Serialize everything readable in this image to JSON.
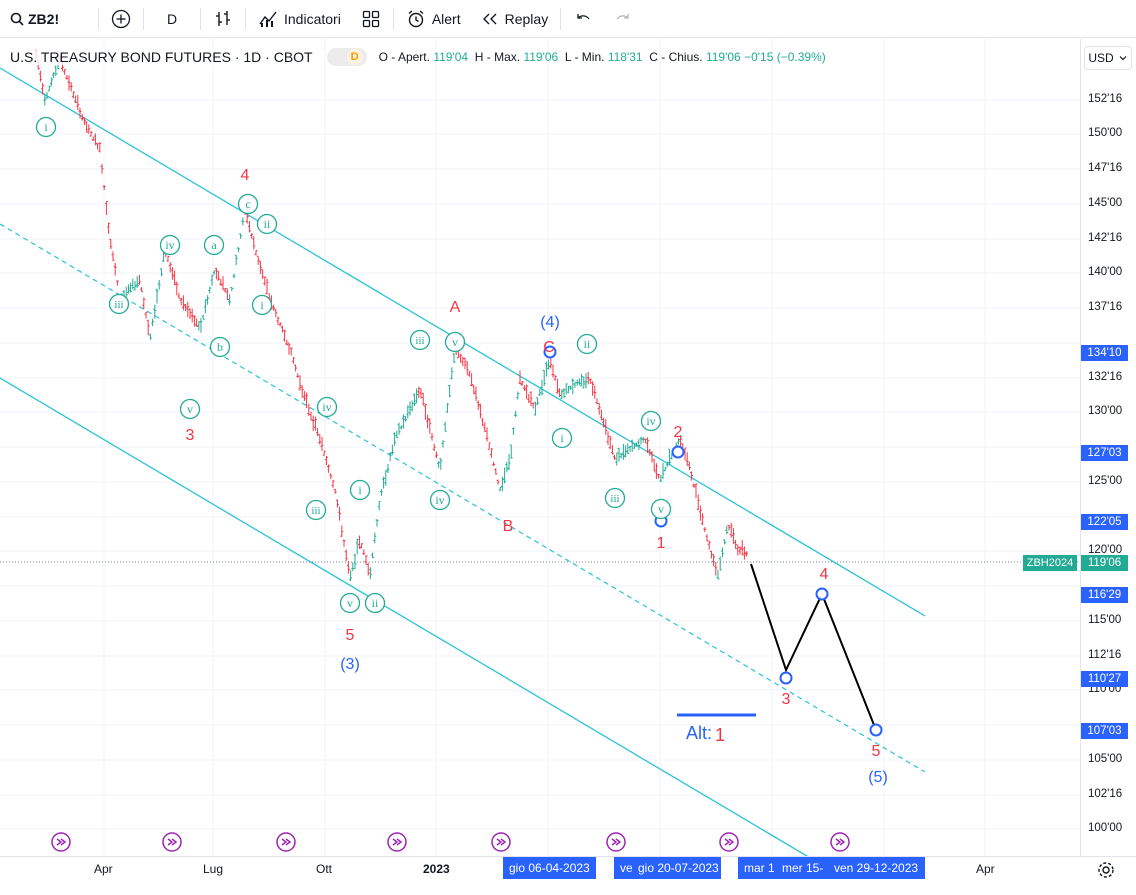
{
  "toolbar": {
    "symbol": "ZB2!",
    "interval": "D",
    "indicators_label": "Indicatori",
    "alert_label": "Alert",
    "replay_label": "Replay"
  },
  "legend": {
    "title": "U.S. TREASURY BOND FUTURES · 1D · CBOT",
    "badge": "D",
    "o_label": "O - Apert.",
    "o_value": "119'04",
    "h_label": "H - Max.",
    "h_value": "119'06",
    "l_label": "L - Min.",
    "l_value": "118'31",
    "c_label": "C - Chius.",
    "c_value": "119'06",
    "change": "−0'15 (−0.39%)"
  },
  "currency": "USD",
  "price_axis": {
    "ticks": [
      "152'16",
      "150'00",
      "147'16",
      "145'00",
      "142'16",
      "140'00",
      "137'16",
      "132'16",
      "130'00",
      "125'00",
      "120'00",
      "115'00",
      "112'16",
      "110'00",
      "105'00",
      "102'16",
      "100'00"
    ],
    "tags": [
      {
        "text": "134'10",
        "color": "#2962ff"
      },
      {
        "text": "127'03",
        "color": "#2962ff"
      },
      {
        "text": "122'05",
        "color": "#2962ff"
      },
      {
        "text": "119'06",
        "color": "#22ab94"
      },
      {
        "text": "116'29",
        "color": "#2962ff"
      },
      {
        "text": "110'27",
        "color": "#2962ff"
      },
      {
        "text": "107'03",
        "color": "#2962ff"
      }
    ],
    "symbol_tag": "ZBH2024"
  },
  "time_axis": {
    "labels": [
      "Apr",
      "Lug",
      "Ott",
      "2023",
      "Apr"
    ],
    "highlighted": [
      "gio 06-04-2023",
      "ve",
      "gio 20-07-2023",
      "mar 1",
      "mer 15-",
      "ven 29-12-2023"
    ]
  },
  "annotations": {
    "wave_labels_red": [
      "4",
      "3",
      "5",
      "A",
      "B",
      "C",
      "2",
      "1",
      "4",
      "3",
      "5"
    ],
    "wave_labels_blue": [
      "(4)",
      "(3)",
      "(5)"
    ],
    "alt_label": "Alt:",
    "alt_value": "1"
  },
  "chart_data": {
    "type": "candlestick",
    "title": "U.S. TREASURY BOND FUTURES · 1D · CBOT",
    "ylim": [
      98,
      156
    ],
    "last_price": "119'06",
    "price_levels": [
      134.3125,
      127.09,
      122.16,
      119.19,
      116.91,
      110.84,
      107.09
    ],
    "channel": "descending",
    "projection_path": [
      {
        "price": 119.19
      },
      {
        "label": "3",
        "price": 110.84
      },
      {
        "label": "4",
        "price": 116.91
      },
      {
        "label": "5",
        "price": 107.09
      }
    ],
    "colors": {
      "up": "#22ab94",
      "down": "#f23645",
      "channel": "#29c3d8",
      "projection": "#000000",
      "wave_red": "#f23645",
      "wave_blue": "#2962ff"
    }
  }
}
